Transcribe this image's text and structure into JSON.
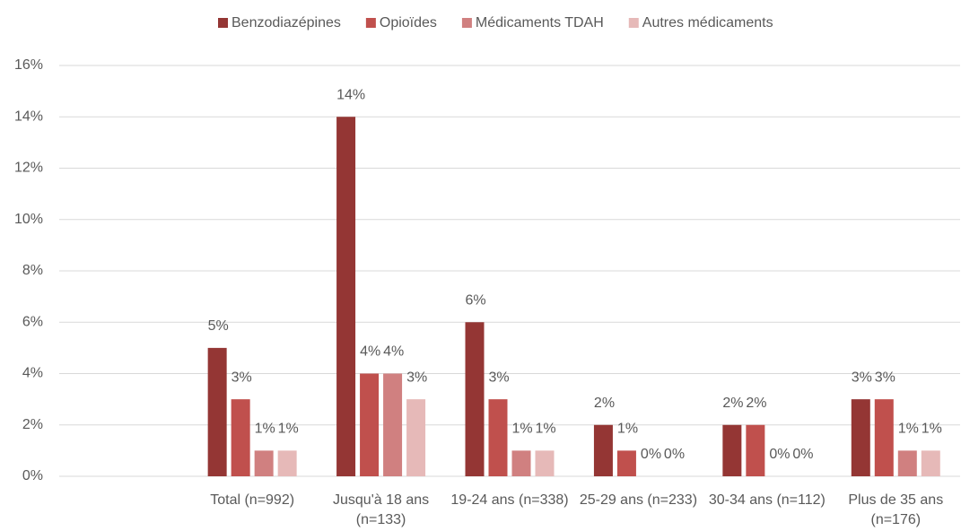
{
  "chart_data": {
    "type": "bar",
    "categories": [
      null,
      "Total (n=992)",
      "Jusqu'à 18 ans (n=133)",
      "19-24 ans (n=338)",
      "25-29 ans (n=233)",
      "30-34 ans (n=112)",
      "Plus de 35 ans (n=176)"
    ],
    "series": [
      {
        "name": "Benzodiazépines",
        "color": "#943634",
        "values": [
          null,
          5,
          14,
          6,
          2,
          2,
          3
        ],
        "value_labels": [
          null,
          "5%",
          "14%",
          "6%",
          "2%",
          "2%",
          "3%"
        ]
      },
      {
        "name": "Opioïdes",
        "color": "#c0504d",
        "values": [
          null,
          3,
          4,
          3,
          1,
          2,
          3
        ],
        "value_labels": [
          null,
          "3%",
          "4%",
          "3%",
          "1%",
          "2%",
          "3%"
        ]
      },
      {
        "name": "Médicaments TDAH",
        "color": "#d08080",
        "values": [
          null,
          1,
          4,
          1,
          0,
          0,
          1
        ],
        "value_labels": [
          null,
          "1%",
          "4%",
          "1%",
          "0%",
          "0%",
          "1%"
        ]
      },
      {
        "name": "Autres médicaments",
        "color": "#e6b9b8",
        "values": [
          null,
          1,
          3,
          1,
          0,
          0,
          1
        ],
        "value_labels": [
          null,
          "1%",
          "3%",
          "1%",
          "0%",
          "0%",
          "1%"
        ]
      }
    ],
    "ylim": [
      0,
      16
    ],
    "yticks": [
      {
        "value": 0,
        "label": "0%"
      },
      {
        "value": 2,
        "label": "2%"
      },
      {
        "value": 4,
        "label": "4%"
      },
      {
        "value": 6,
        "label": "6%"
      },
      {
        "value": 8,
        "label": "8%"
      },
      {
        "value": 10,
        "label": "10%"
      },
      {
        "value": 12,
        "label": "12%"
      },
      {
        "value": 14,
        "label": "14%"
      },
      {
        "value": 16,
        "label": "16%"
      }
    ],
    "grid": true,
    "legend": "top"
  }
}
